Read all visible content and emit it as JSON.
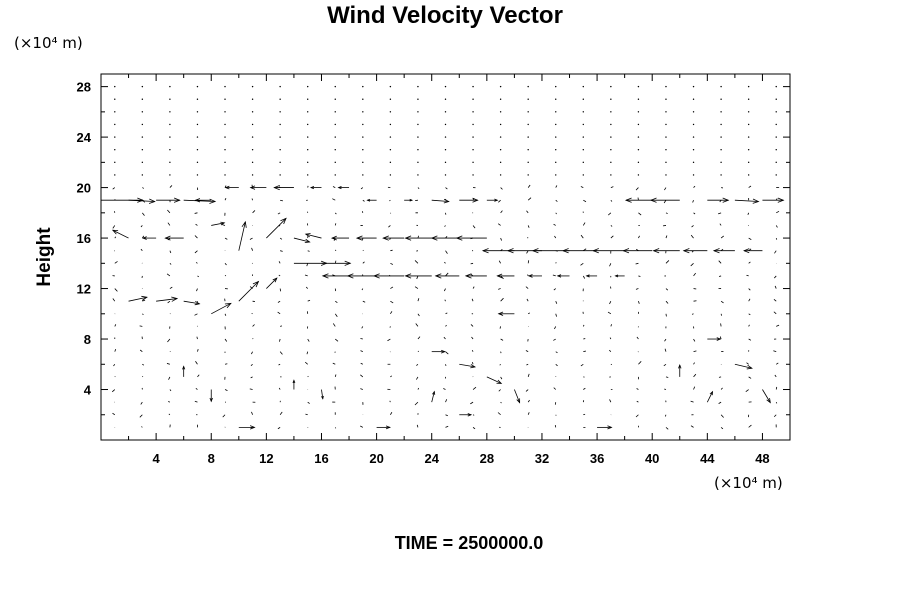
{
  "chart_data": {
    "type": "vector-field",
    "title": "Wind Velocity Vector",
    "xlabel": "",
    "ylabel": "Height",
    "x_unit": "(×10⁴ m)",
    "y_unit": "(×10⁴ m)",
    "xlim": [
      0,
      50
    ],
    "ylim": [
      0,
      29
    ],
    "x_ticks": [
      4,
      8,
      12,
      16,
      20,
      24,
      28,
      32,
      36,
      40,
      44,
      48
    ],
    "y_ticks": [
      4,
      8,
      12,
      16,
      20,
      24,
      28
    ],
    "x_minor_step": 2,
    "y_minor_step": 2,
    "time_label": "TIME = 2500000.0",
    "vectors": [
      {
        "x": 0,
        "y": 19,
        "u": 3.2,
        "v": 0
      },
      {
        "x": 2,
        "y": 19,
        "u": 2.0,
        "v": -0.1
      },
      {
        "x": 4,
        "y": 19,
        "u": 1.8,
        "v": 0
      },
      {
        "x": 6,
        "y": 19,
        "u": 2.4,
        "v": -0.1
      },
      {
        "x": 8,
        "y": 19,
        "u": -1.2,
        "v": 0
      },
      {
        "x": 10,
        "y": 20,
        "u": -1.0,
        "v": 0
      },
      {
        "x": 12,
        "y": 20,
        "u": -1.2,
        "v": 0
      },
      {
        "x": 14,
        "y": 20,
        "u": -1.5,
        "v": 0
      },
      {
        "x": 16,
        "y": 20,
        "u": -0.8,
        "v": 0
      },
      {
        "x": 18,
        "y": 20,
        "u": -0.8,
        "v": 0
      },
      {
        "x": 20,
        "y": 19,
        "u": -0.7,
        "v": 0
      },
      {
        "x": 22,
        "y": 19,
        "u": 0.6,
        "v": 0
      },
      {
        "x": 24,
        "y": 19,
        "u": 1.3,
        "v": -0.1
      },
      {
        "x": 26,
        "y": 19,
        "u": 1.4,
        "v": 0
      },
      {
        "x": 28,
        "y": 19,
        "u": 0.8,
        "v": 0
      },
      {
        "x": 40,
        "y": 19,
        "u": -2.0,
        "v": 0
      },
      {
        "x": 42,
        "y": 19,
        "u": -2.2,
        "v": 0
      },
      {
        "x": 44,
        "y": 19,
        "u": 1.6,
        "v": 0
      },
      {
        "x": 46,
        "y": 19,
        "u": 1.8,
        "v": -0.1
      },
      {
        "x": 48,
        "y": 19,
        "u": 1.6,
        "v": 0
      },
      {
        "x": 2,
        "y": 16,
        "u": -1.2,
        "v": 0.6
      },
      {
        "x": 4,
        "y": 16,
        "u": -1.0,
        "v": 0
      },
      {
        "x": 6,
        "y": 16,
        "u": -1.4,
        "v": 0
      },
      {
        "x": 8,
        "y": 17,
        "u": 1.0,
        "v": 0.2
      },
      {
        "x": 10,
        "y": 15,
        "u": 0.5,
        "v": 2.2
      },
      {
        "x": 12,
        "y": 16,
        "u": 1.5,
        "v": 1.5
      },
      {
        "x": 14,
        "y": 16,
        "u": 1.2,
        "v": -0.3
      },
      {
        "x": 16,
        "y": 16,
        "u": -1.2,
        "v": 0.3
      },
      {
        "x": 18,
        "y": 16,
        "u": -1.3,
        "v": 0
      },
      {
        "x": 20,
        "y": 16,
        "u": -1.5,
        "v": 0
      },
      {
        "x": 22,
        "y": 16,
        "u": -1.6,
        "v": 0
      },
      {
        "x": 24,
        "y": 16,
        "u": -2.0,
        "v": 0
      },
      {
        "x": 26,
        "y": 16,
        "u": -2.1,
        "v": 0
      },
      {
        "x": 28,
        "y": 16,
        "u": -2.3,
        "v": 0
      },
      {
        "x": 30,
        "y": 15,
        "u": -2.4,
        "v": 0
      },
      {
        "x": 32,
        "y": 15,
        "u": -2.6,
        "v": 0
      },
      {
        "x": 34,
        "y": 15,
        "u": -2.8,
        "v": 0
      },
      {
        "x": 36,
        "y": 15,
        "u": -2.6,
        "v": 0
      },
      {
        "x": 38,
        "y": 15,
        "u": -2.4,
        "v": 0
      },
      {
        "x": 40,
        "y": 15,
        "u": -2.2,
        "v": 0
      },
      {
        "x": 42,
        "y": 15,
        "u": -2.0,
        "v": 0
      },
      {
        "x": 44,
        "y": 15,
        "u": -1.8,
        "v": 0
      },
      {
        "x": 46,
        "y": 15,
        "u": -1.6,
        "v": 0
      },
      {
        "x": 48,
        "y": 15,
        "u": -1.4,
        "v": 0
      },
      {
        "x": 2,
        "y": 11,
        "u": 1.4,
        "v": 0.3
      },
      {
        "x": 4,
        "y": 11,
        "u": 1.6,
        "v": 0.2
      },
      {
        "x": 6,
        "y": 11,
        "u": 1.2,
        "v": -0.2
      },
      {
        "x": 8,
        "y": 10,
        "u": 1.5,
        "v": 0.8
      },
      {
        "x": 10,
        "y": 11,
        "u": 1.5,
        "v": 1.5
      },
      {
        "x": 12,
        "y": 12,
        "u": 0.8,
        "v": 0.8
      },
      {
        "x": 14,
        "y": 14,
        "u": 2.5,
        "v": 0
      },
      {
        "x": 16,
        "y": 14,
        "u": 2.2,
        "v": 0
      },
      {
        "x": 18,
        "y": 13,
        "u": -2.0,
        "v": 0
      },
      {
        "x": 20,
        "y": 13,
        "u": -2.2,
        "v": 0
      },
      {
        "x": 22,
        "y": 13,
        "u": -2.3,
        "v": 0
      },
      {
        "x": 24,
        "y": 13,
        "u": -2.0,
        "v": 0
      },
      {
        "x": 26,
        "y": 13,
        "u": -1.8,
        "v": 0
      },
      {
        "x": 28,
        "y": 13,
        "u": -1.6,
        "v": 0
      },
      {
        "x": 30,
        "y": 13,
        "u": -1.3,
        "v": 0
      },
      {
        "x": 32,
        "y": 13,
        "u": -1.0,
        "v": 0
      },
      {
        "x": 34,
        "y": 13,
        "u": -0.9,
        "v": 0
      },
      {
        "x": 36,
        "y": 13,
        "u": -0.8,
        "v": 0
      },
      {
        "x": 38,
        "y": 13,
        "u": -0.7,
        "v": 0
      },
      {
        "x": 30,
        "y": 10,
        "u": -1.2,
        "v": 0
      },
      {
        "x": 6,
        "y": 5,
        "u": 0,
        "v": 0.8
      },
      {
        "x": 8,
        "y": 4,
        "u": 0,
        "v": -0.9
      },
      {
        "x": 14,
        "y": 4,
        "u": 0,
        "v": 0.7
      },
      {
        "x": 16,
        "y": 4,
        "u": 0.1,
        "v": -0.7
      },
      {
        "x": 24,
        "y": 7,
        "u": 1.0,
        "v": 0
      },
      {
        "x": 26,
        "y": 6,
        "u": 1.2,
        "v": -0.2
      },
      {
        "x": 28,
        "y": 5,
        "u": 1.1,
        "v": -0.5
      },
      {
        "x": 30,
        "y": 4,
        "u": 0.4,
        "v": -1.0
      },
      {
        "x": 24,
        "y": 3,
        "u": 0.2,
        "v": 0.8
      },
      {
        "x": 26,
        "y": 2,
        "u": 0.9,
        "v": 0
      },
      {
        "x": 44,
        "y": 8,
        "u": 1.0,
        "v": 0
      },
      {
        "x": 46,
        "y": 6,
        "u": 1.3,
        "v": -0.3
      },
      {
        "x": 48,
        "y": 4,
        "u": 0.6,
        "v": -1.0
      },
      {
        "x": 44,
        "y": 3,
        "u": 0.4,
        "v": 0.8
      },
      {
        "x": 42,
        "y": 5,
        "u": 0,
        "v": 0.9
      },
      {
        "x": 10,
        "y": 1,
        "u": 1.2,
        "v": 0
      },
      {
        "x": 20,
        "y": 1,
        "u": 1.0,
        "v": 0
      },
      {
        "x": 36,
        "y": 1,
        "u": 1.1,
        "v": 0
      }
    ]
  }
}
